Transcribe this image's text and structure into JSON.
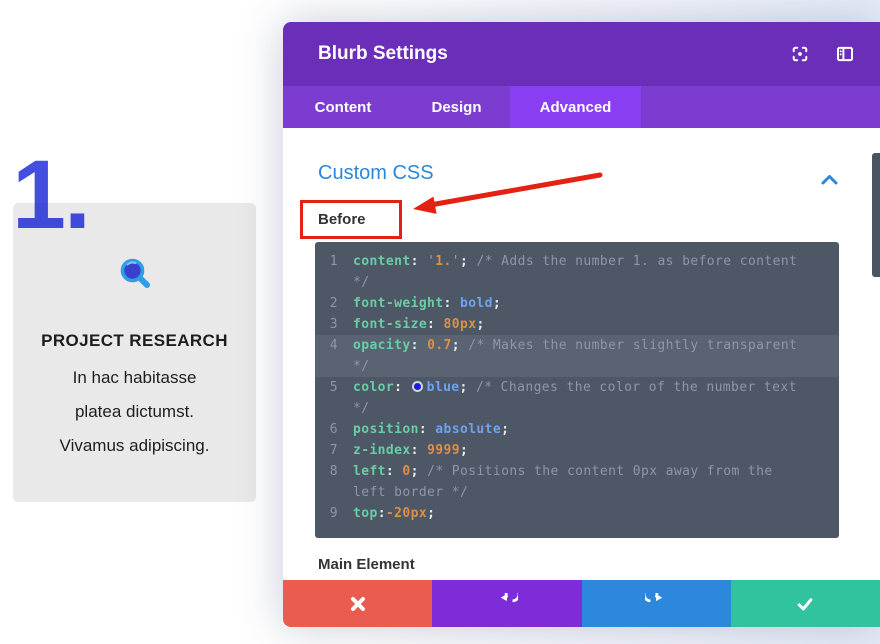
{
  "modal": {
    "title": "Blurb Settings",
    "tabs": [
      {
        "label": "Content",
        "active": false
      },
      {
        "label": "Design",
        "active": false
      },
      {
        "label": "Advanced",
        "active": true
      }
    ],
    "header_icons": [
      "expand-icon",
      "panel-layout-icon"
    ]
  },
  "section": {
    "title": "Custom CSS",
    "before_label": "Before",
    "main_element_label": "Main Element",
    "collapse_icon": "chevron-up-icon"
  },
  "editor": {
    "rows": [
      {
        "n": "1",
        "hl": false,
        "t": [
          {
            "c": "p",
            "t": "content"
          },
          {
            "c": "o",
            "t": ": "
          },
          {
            "c": "q",
            "t": "'"
          },
          {
            "c": "n",
            "t": "1."
          },
          {
            "c": "q",
            "t": "'"
          },
          {
            "c": "o",
            "t": ";"
          },
          {
            "c": "c",
            "t": " /* Adds the number 1. as before content"
          }
        ]
      },
      {
        "n": "",
        "hl": false,
        "t": [
          {
            "c": "c",
            "t": "*/"
          }
        ]
      },
      {
        "n": "2",
        "hl": false,
        "t": [
          {
            "c": "p",
            "t": "font-weight"
          },
          {
            "c": "o",
            "t": ": "
          },
          {
            "c": "k",
            "t": "bold"
          },
          {
            "c": "o",
            "t": ";"
          }
        ]
      },
      {
        "n": "3",
        "hl": false,
        "t": [
          {
            "c": "p",
            "t": "font-size"
          },
          {
            "c": "o",
            "t": ": "
          },
          {
            "c": "n",
            "t": "80px"
          },
          {
            "c": "o",
            "t": ";"
          }
        ]
      },
      {
        "n": "4",
        "hl": true,
        "t": [
          {
            "c": "p",
            "t": "opacity"
          },
          {
            "c": "o",
            "t": ": "
          },
          {
            "c": "n",
            "t": "0.7"
          },
          {
            "c": "o",
            "t": ";"
          },
          {
            "c": "c",
            "t": " /* Makes the number slightly transparent"
          }
        ]
      },
      {
        "n": "",
        "hl": true,
        "t": [
          {
            "c": "c",
            "t": "*/"
          }
        ]
      },
      {
        "n": "5",
        "hl": false,
        "t": [
          {
            "c": "p",
            "t": "color"
          },
          {
            "c": "o",
            "t": ": "
          },
          {
            "c": "w",
            "t": ""
          },
          {
            "c": "k",
            "t": "blue"
          },
          {
            "c": "o",
            "t": ";"
          },
          {
            "c": "c",
            "t": " /* Changes the color of the number text"
          }
        ]
      },
      {
        "n": "",
        "hl": false,
        "t": [
          {
            "c": "c",
            "t": "*/"
          }
        ]
      },
      {
        "n": "6",
        "hl": false,
        "t": [
          {
            "c": "p",
            "t": "position"
          },
          {
            "c": "o",
            "t": ": "
          },
          {
            "c": "k",
            "t": "absolute"
          },
          {
            "c": "o",
            "t": ";"
          }
        ]
      },
      {
        "n": "7",
        "hl": false,
        "t": [
          {
            "c": "p",
            "t": "z-index"
          },
          {
            "c": "o",
            "t": ": "
          },
          {
            "c": "n",
            "t": "9999"
          },
          {
            "c": "o",
            "t": ";"
          }
        ]
      },
      {
        "n": "8",
        "hl": false,
        "t": [
          {
            "c": "p",
            "t": "left"
          },
          {
            "c": "o",
            "t": ": "
          },
          {
            "c": "n",
            "t": "0"
          },
          {
            "c": "o",
            "t": ";"
          },
          {
            "c": "c",
            "t": " /* Positions the content 0px away from the"
          }
        ]
      },
      {
        "n": "",
        "hl": false,
        "t": [
          {
            "c": "c",
            "t": "left border */"
          }
        ]
      },
      {
        "n": "9",
        "hl": false,
        "t": [
          {
            "c": "p",
            "t": "top"
          },
          {
            "c": "o",
            "t": ":"
          },
          {
            "c": "n",
            "t": "-20px"
          },
          {
            "c": "o",
            "t": ";"
          }
        ]
      }
    ]
  },
  "preview": {
    "number": "1.",
    "icon": "magnifier-icon",
    "heading": "PROJECT RESEARCH",
    "body_lines": [
      "In hac habitasse",
      "platea dictumst.",
      "Vivamus adipiscing."
    ]
  },
  "footer": {
    "buttons": [
      {
        "name": "cancel-button",
        "icon": "x-icon",
        "color": "#ea5b50"
      },
      {
        "name": "undo-button",
        "icon": "undo-icon",
        "color": "#7e2bd8"
      },
      {
        "name": "redo-button",
        "icon": "redo-icon",
        "color": "#2d87dc"
      },
      {
        "name": "save-button",
        "icon": "check-icon",
        "color": "#30c39e"
      }
    ]
  },
  "colors": {
    "header_purple": "#6b2eb8",
    "tabbar_purple": "#7c3cd0",
    "active_tab_purple": "#8a3ef2",
    "accent_blue": "#2b87da",
    "editor_bg": "#4e5765",
    "editor_highlight": "#596372",
    "annotation_red": "#e32213",
    "card_gray": "#e9e9e9",
    "number_blue": "rgba(15,30,215,0.78)",
    "scrollbar_gray": "#4a5462"
  }
}
